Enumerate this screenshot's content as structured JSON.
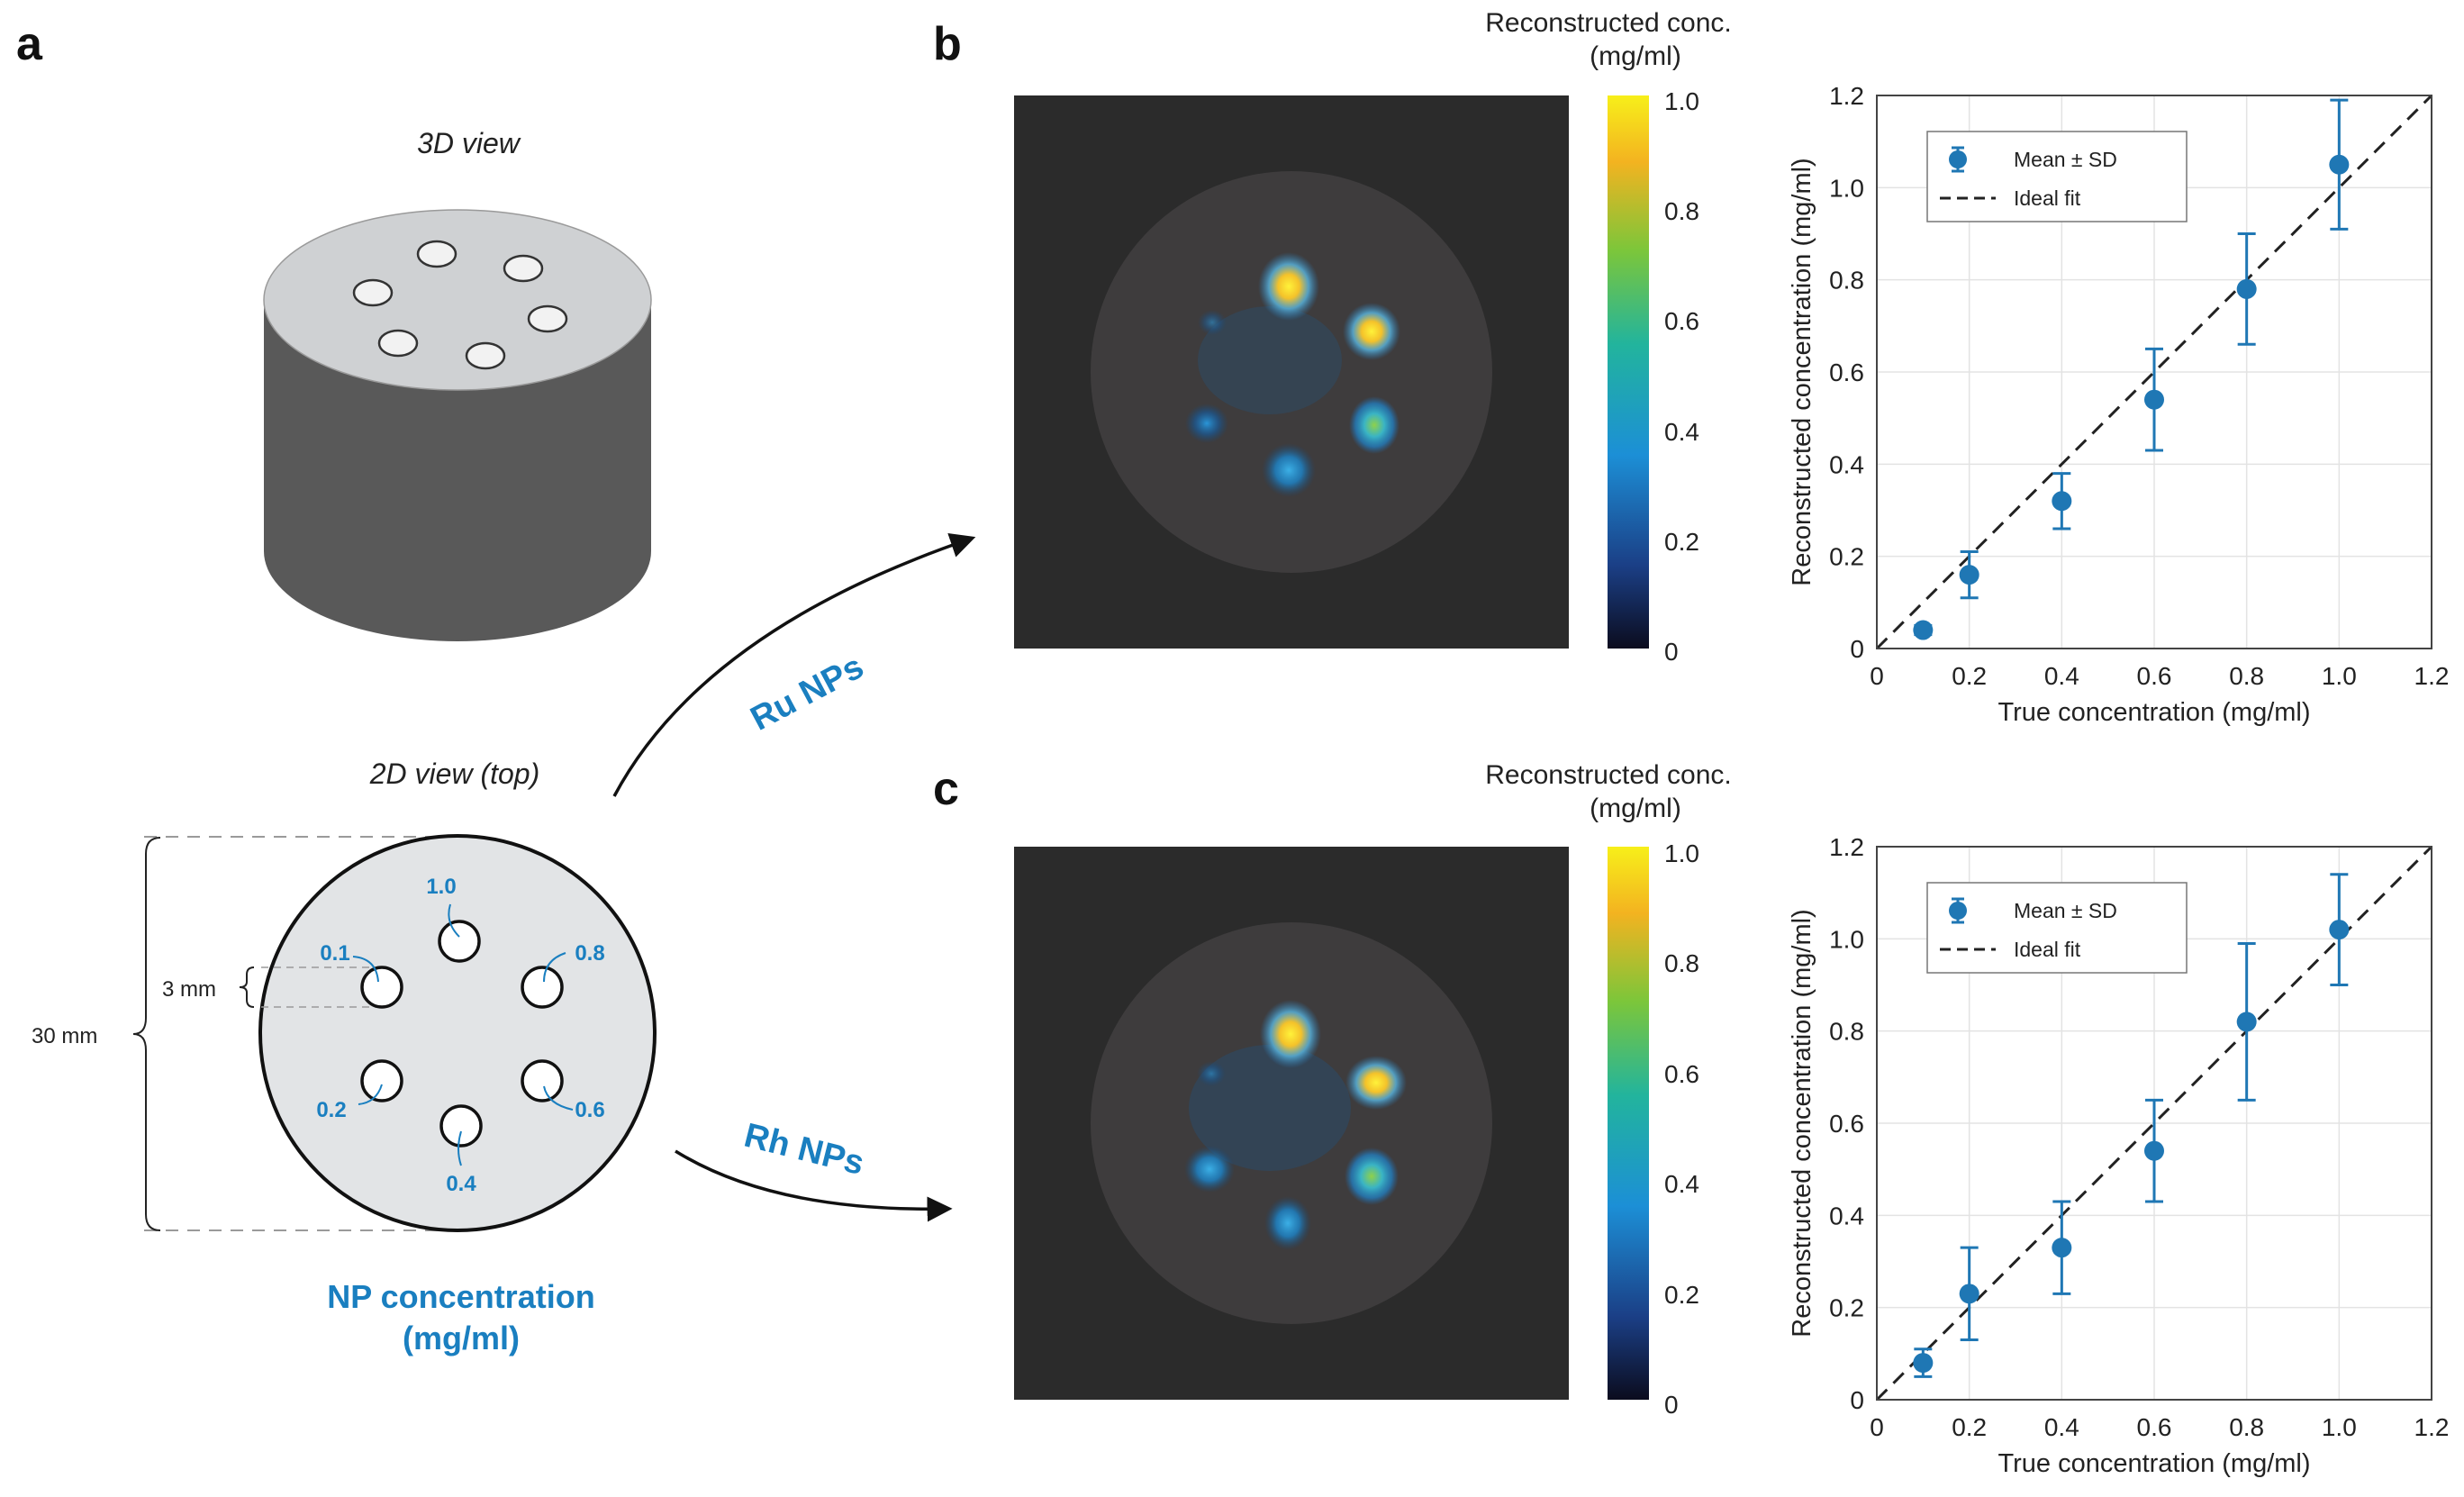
{
  "panels": {
    "a": {
      "letter": "a",
      "view3d_title": "3D view",
      "view2d_title": "2D view (top)",
      "well_labels": [
        "1.0",
        "0.1",
        "0.8",
        "0.2",
        "0.6",
        "0.4"
      ],
      "dim_small": "3 mm",
      "dim_large": "30 mm",
      "caption_line1": "NP concentration",
      "caption_line2": "(mg/ml)"
    },
    "b": {
      "letter": "b",
      "arrow_label": "Ru NPs"
    },
    "c": {
      "letter": "c",
      "arrow_label": "Rh NPs"
    }
  },
  "colorbar": {
    "title_line1": "Reconstructed conc.",
    "title_line2": "(mg/ml)",
    "ticks": [
      "1.0",
      "0.8",
      "0.6",
      "0.4",
      "0.2",
      "0"
    ]
  },
  "colors": {
    "accent_blue": "#1a7fc0",
    "marker_blue": "#1f77b4",
    "cylinder_top": "#d0d2d4",
    "cylinder_side": "#5a5a5a",
    "image_bg": "#2a2a2a",
    "phantom_disk": "#3e3c3d"
  },
  "chart_data": [
    {
      "type": "scatter",
      "title": "",
      "xlabel": "True concentration (mg/ml)",
      "ylabel": "Reconstructed concentration (mg/ml)",
      "xlim": [
        0,
        1.2
      ],
      "ylim": [
        0,
        1.2
      ],
      "xticks": [
        "0",
        "0.2",
        "0.4",
        "0.6",
        "0.8",
        "1.0",
        "1.2"
      ],
      "yticks": [
        "0",
        "0.2",
        "0.4",
        "0.6",
        "0.8",
        "1.0",
        "1.2"
      ],
      "grid": true,
      "legend": {
        "position": "top-left",
        "entries": [
          "Mean ± SD",
          "Ideal fit"
        ]
      },
      "series": [
        {
          "name": "Mean ± SD",
          "x": [
            0.1,
            0.2,
            0.4,
            0.6,
            0.8,
            1.0
          ],
          "y": [
            0.04,
            0.16,
            0.32,
            0.54,
            0.78,
            1.05
          ],
          "sd": [
            0.01,
            0.05,
            0.06,
            0.11,
            0.12,
            0.14
          ]
        },
        {
          "name": "Ideal fit",
          "x": [
            0,
            1.2
          ],
          "y": [
            0,
            1.2
          ]
        }
      ]
    },
    {
      "type": "scatter",
      "title": "",
      "xlabel": "True concentration (mg/ml)",
      "ylabel": "Reconstructed concentration (mg/ml)",
      "xlim": [
        0,
        1.2
      ],
      "ylim": [
        0,
        1.2
      ],
      "xticks": [
        "0",
        "0.2",
        "0.4",
        "0.6",
        "0.8",
        "1.0",
        "1.2"
      ],
      "yticks": [
        "0",
        "0.2",
        "0.4",
        "0.6",
        "0.8",
        "1.0",
        "1.2"
      ],
      "grid": true,
      "legend": {
        "position": "top-left",
        "entries": [
          "Mean ± SD",
          "Ideal fit"
        ]
      },
      "series": [
        {
          "name": "Mean ± SD",
          "x": [
            0.1,
            0.2,
            0.4,
            0.6,
            0.8,
            1.0
          ],
          "y": [
            0.08,
            0.23,
            0.33,
            0.54,
            0.82,
            1.02
          ],
          "sd": [
            0.03,
            0.1,
            0.1,
            0.11,
            0.17,
            0.12
          ]
        },
        {
          "name": "Ideal fit",
          "x": [
            0,
            1.2
          ],
          "y": [
            0,
            1.2
          ]
        }
      ]
    }
  ],
  "hotspots": [
    {
      "conc": 1.0,
      "intensity": 1.0
    },
    {
      "conc": 0.8,
      "intensity": 0.85
    },
    {
      "conc": 0.6,
      "intensity": 0.6
    },
    {
      "conc": 0.4,
      "intensity": 0.35
    },
    {
      "conc": 0.2,
      "intensity": 0.22
    },
    {
      "conc": 0.1,
      "intensity": 0.15
    }
  ]
}
